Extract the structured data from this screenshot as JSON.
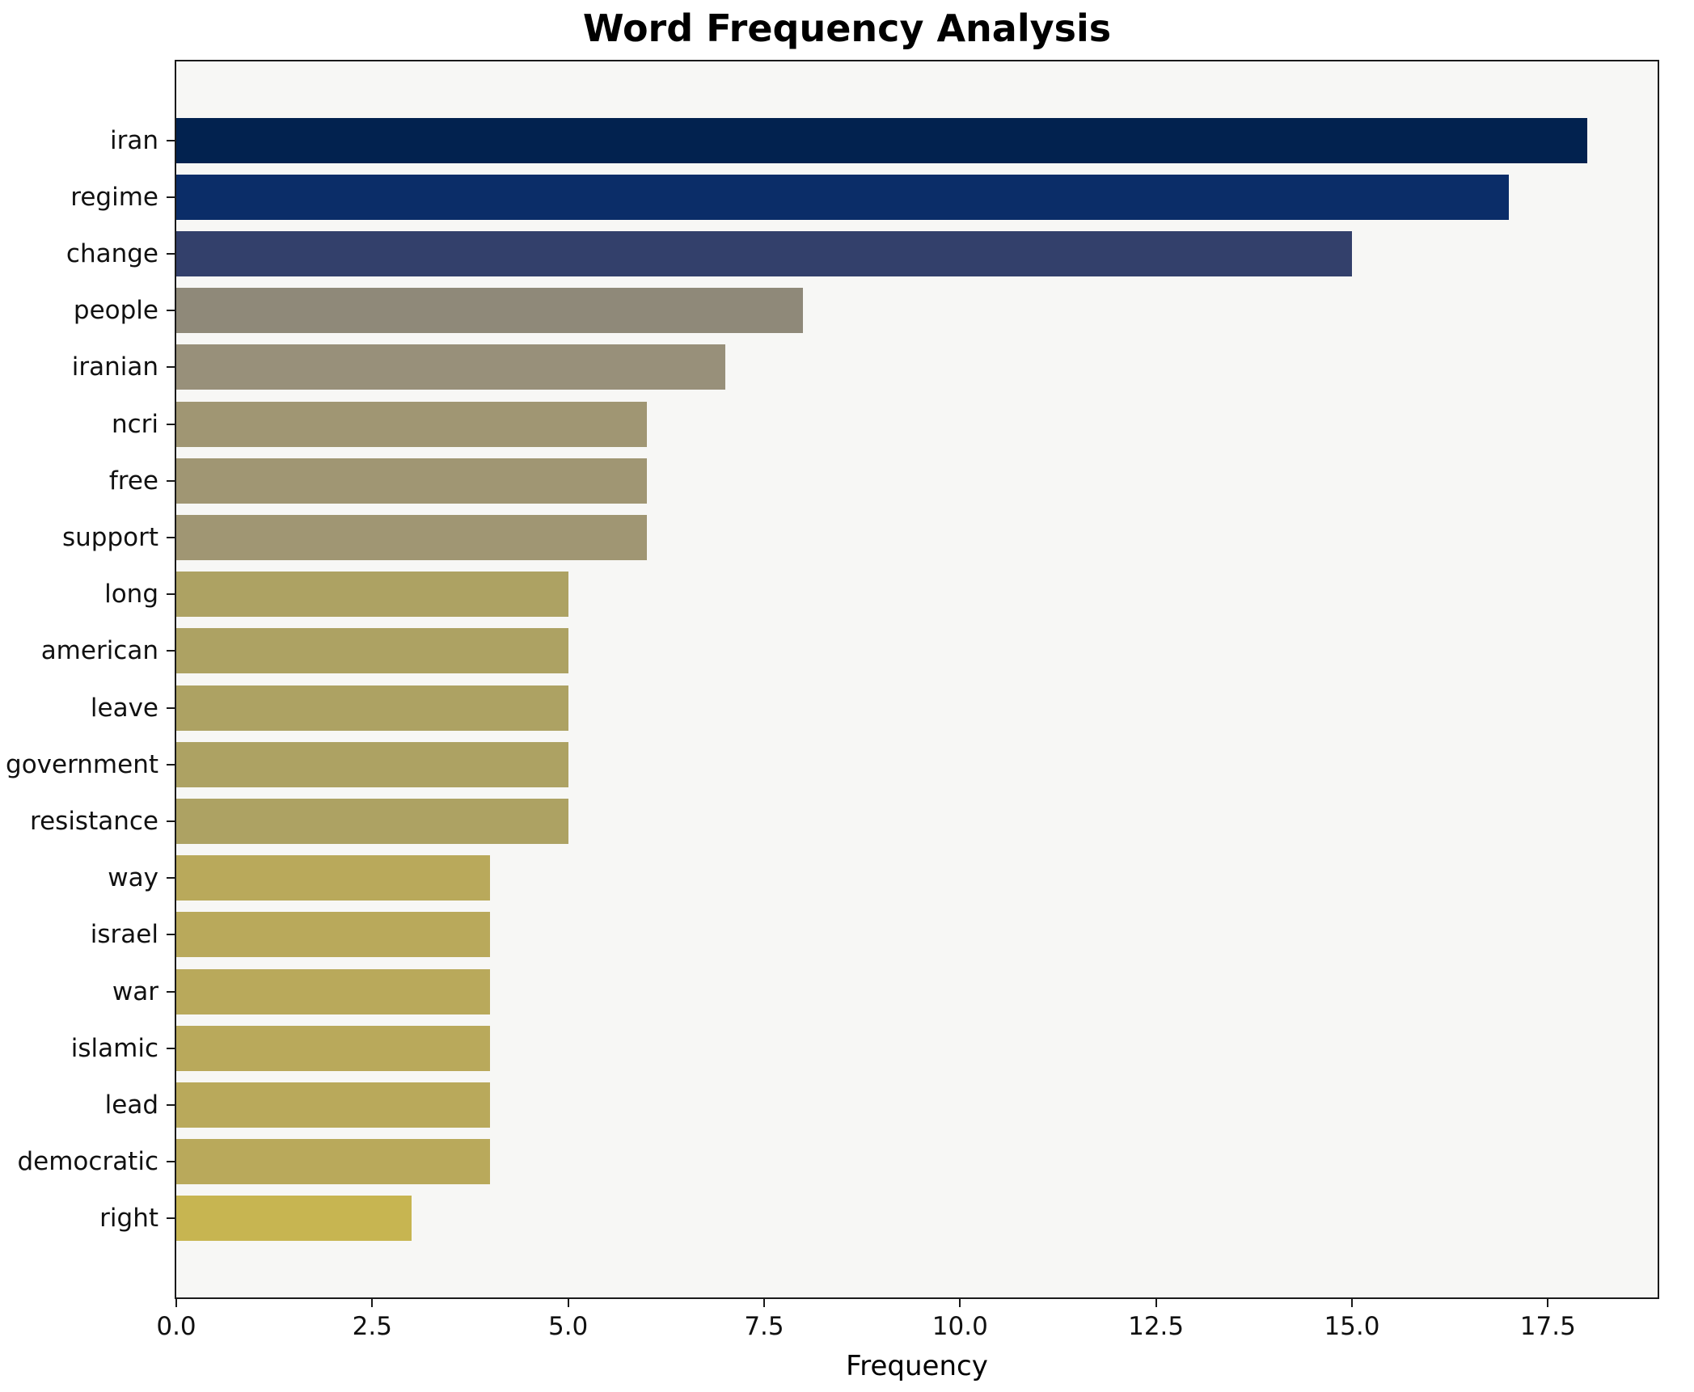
{
  "chart_data": {
    "type": "bar",
    "orientation": "horizontal",
    "title": "Word Frequency Analysis",
    "xlabel": "Frequency",
    "ylabel": "",
    "categories": [
      "iran",
      "regime",
      "change",
      "people",
      "iranian",
      "ncri",
      "free",
      "support",
      "long",
      "american",
      "leave",
      "government",
      "resistance",
      "way",
      "israel",
      "war",
      "islamic",
      "lead",
      "democratic",
      "right"
    ],
    "values": [
      18,
      17,
      15,
      8,
      7,
      6,
      6,
      6,
      5,
      5,
      5,
      5,
      5,
      4,
      4,
      4,
      4,
      4,
      4,
      3
    ],
    "bar_colors": [
      "#02224f",
      "#0b2d68",
      "#33406b",
      "#8f8979",
      "#98907a",
      "#a09673",
      "#a09673",
      "#a09673",
      "#ada263",
      "#ada263",
      "#ada263",
      "#ada263",
      "#ada263",
      "#b9a95b",
      "#b9a95b",
      "#b9a95b",
      "#b9a95b",
      "#b9a95b",
      "#b9a95b",
      "#c7b551"
    ],
    "xlim": [
      0,
      18.9
    ],
    "xticks": [
      "0.0",
      "2.5",
      "5.0",
      "7.5",
      "10.0",
      "12.5",
      "15.0",
      "17.5"
    ],
    "grid": false,
    "legend": "none",
    "plot_background": "#f7f7f5",
    "axis_color": "#1a1a1a"
  }
}
